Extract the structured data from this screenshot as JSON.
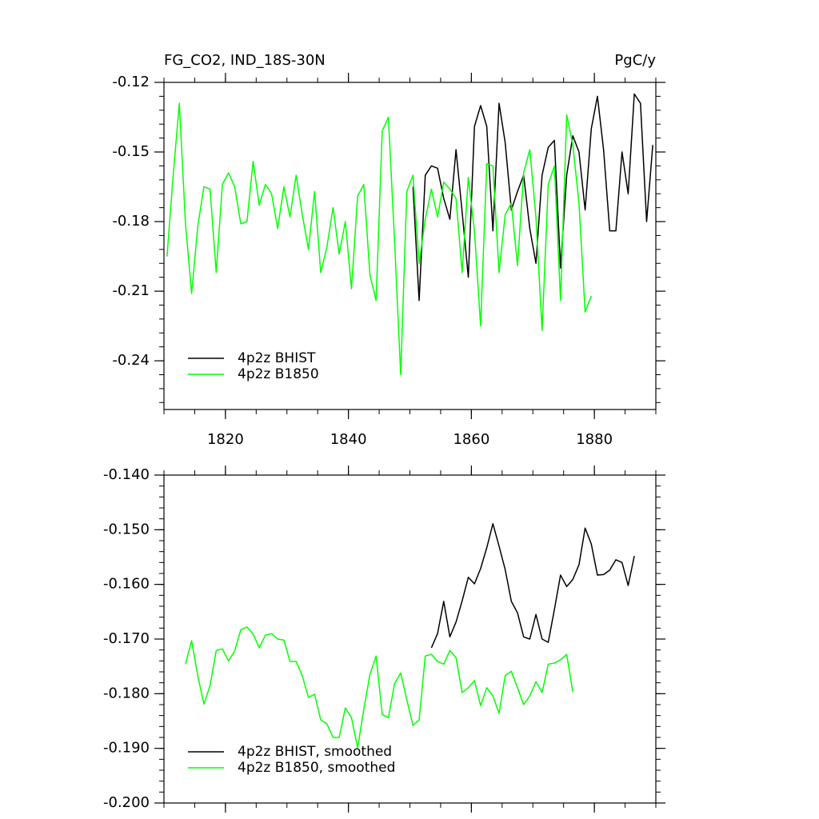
{
  "chart_data": [
    {
      "type": "line",
      "title": "FG_CO2, IND_18S-30N",
      "units": "PgC/y",
      "xlim": [
        1810,
        1890
      ],
      "xticks": [
        1820,
        1840,
        1860,
        1880
      ],
      "xtick_labels": true,
      "ylim": [
        -0.261,
        -0.12
      ],
      "yticks": [
        -0.12,
        -0.15,
        -0.18,
        -0.21,
        -0.24
      ],
      "legend": "lower left",
      "series": [
        {
          "name": "4p2z BHIST",
          "color": "#000000",
          "x": [
            1850.5,
            1851.5,
            1852.5,
            1853.5,
            1854.5,
            1855.5,
            1856.5,
            1857.5,
            1858.5,
            1859.5,
            1860.5,
            1861.5,
            1862.5,
            1863.5,
            1864.5,
            1865.5,
            1866.5,
            1867.5,
            1868.5,
            1869.5,
            1870.5,
            1871.5,
            1872.5,
            1873.5,
            1874.5,
            1875.5,
            1876.5,
            1877.5,
            1878.5,
            1879.5,
            1880.5,
            1881.5,
            1882.5,
            1883.5,
            1884.5,
            1885.5,
            1886.5,
            1887.5,
            1888.5,
            1889.5
          ],
          "values": [
            -0.165,
            -0.214,
            -0.16,
            -0.156,
            -0.157,
            -0.17,
            -0.179,
            -0.149,
            -0.176,
            -0.204,
            -0.139,
            -0.13,
            -0.139,
            -0.184,
            -0.129,
            -0.146,
            -0.175,
            -0.167,
            -0.16,
            -0.183,
            -0.198,
            -0.16,
            -0.148,
            -0.145,
            -0.2,
            -0.16,
            -0.143,
            -0.15,
            -0.175,
            -0.14,
            -0.126,
            -0.149,
            -0.184,
            -0.184,
            -0.15,
            -0.168,
            -0.125,
            -0.129,
            -0.18,
            -0.147
          ]
        },
        {
          "name": "4p2z B1850",
          "color": "#00ff00",
          "x": [
            1810.5,
            1811.5,
            1812.5,
            1813.5,
            1814.5,
            1815.5,
            1816.5,
            1817.5,
            1818.5,
            1819.5,
            1820.5,
            1821.5,
            1822.5,
            1823.5,
            1824.5,
            1825.5,
            1826.5,
            1827.5,
            1828.5,
            1829.5,
            1830.5,
            1831.5,
            1832.5,
            1833.5,
            1834.5,
            1835.5,
            1836.5,
            1837.5,
            1838.5,
            1839.5,
            1840.5,
            1841.5,
            1842.5,
            1843.5,
            1844.5,
            1845.5,
            1846.5,
            1847.5,
            1848.5,
            1849.5,
            1850.5,
            1851.5,
            1852.5,
            1853.5,
            1854.5,
            1855.5,
            1856.5,
            1857.5,
            1858.5,
            1859.5,
            1860.5,
            1861.5,
            1862.5,
            1863.5,
            1864.5,
            1865.5,
            1866.5,
            1867.5,
            1868.5,
            1869.5,
            1870.5,
            1871.5,
            1872.5,
            1873.5,
            1874.5,
            1875.5,
            1876.5,
            1877.5,
            1878.5,
            1879.5
          ],
          "values": [
            -0.195,
            -0.16,
            -0.129,
            -0.181,
            -0.211,
            -0.182,
            -0.165,
            -0.166,
            -0.202,
            -0.164,
            -0.159,
            -0.165,
            -0.181,
            -0.18,
            -0.154,
            -0.173,
            -0.164,
            -0.168,
            -0.183,
            -0.165,
            -0.178,
            -0.16,
            -0.177,
            -0.192,
            -0.167,
            -0.202,
            -0.191,
            -0.174,
            -0.194,
            -0.18,
            -0.209,
            -0.169,
            -0.164,
            -0.203,
            -0.214,
            -0.141,
            -0.135,
            -0.188,
            -0.246,
            -0.167,
            -0.16,
            -0.198,
            -0.179,
            -0.166,
            -0.178,
            -0.163,
            -0.166,
            -0.17,
            -0.202,
            -0.161,
            -0.184,
            -0.225,
            -0.155,
            -0.156,
            -0.202,
            -0.177,
            -0.172,
            -0.199,
            -0.159,
            -0.149,
            -0.178,
            -0.227,
            -0.164,
            -0.156,
            -0.214,
            -0.134,
            -0.147,
            -0.172,
            -0.219,
            -0.212
          ]
        }
      ]
    },
    {
      "type": "line",
      "xlim": [
        1810,
        1890
      ],
      "xticks": [
        1820,
        1840,
        1860,
        1880
      ],
      "xtick_labels": false,
      "ylim": [
        -0.2,
        -0.14
      ],
      "yticks": [
        {
          "value": -0.14,
          "label": "-0.140"
        },
        {
          "value": -0.15,
          "label": "-0.150"
        },
        {
          "value": -0.16,
          "label": "-0.160"
        },
        {
          "value": -0.17,
          "label": "-0.170"
        },
        {
          "value": -0.18,
          "label": "-0.180"
        },
        {
          "value": -0.19,
          "label": "-0.190"
        },
        {
          "value": -0.2,
          "label": "-0.200"
        }
      ],
      "legend": "lower left",
      "series": [
        {
          "name": "4p2z BHIST, smoothed",
          "color": "#000000",
          "x": [
            1853.5,
            1854.5,
            1855.5,
            1856.5,
            1857.5,
            1858.5,
            1859.5,
            1860.5,
            1861.5,
            1862.5,
            1863.5,
            1864.5,
            1865.5,
            1866.5,
            1867.5,
            1868.5,
            1869.5,
            1870.5,
            1871.5,
            1872.5,
            1873.5,
            1874.5,
            1875.5,
            1876.5,
            1877.5,
            1878.5,
            1879.5,
            1880.5,
            1881.5,
            1882.5,
            1883.5,
            1884.5,
            1885.5,
            1886.5
          ],
          "values": [
            -0.1716,
            -0.169,
            -0.1631,
            -0.1696,
            -0.1669,
            -0.163,
            -0.1587,
            -0.1599,
            -0.1571,
            -0.1533,
            -0.1489,
            -0.153,
            -0.1573,
            -0.1631,
            -0.1652,
            -0.1696,
            -0.17,
            -0.1655,
            -0.17,
            -0.1706,
            -0.1646,
            -0.1583,
            -0.1604,
            -0.1591,
            -0.1564,
            -0.1497,
            -0.1526,
            -0.1583,
            -0.1582,
            -0.1574,
            -0.1555,
            -0.156,
            -0.1602,
            -0.1548
          ]
        },
        {
          "name": "4p2z B1850, smoothed",
          "color": "#00ff00",
          "x": [
            1813.5,
            1814.5,
            1815.5,
            1816.5,
            1817.5,
            1818.5,
            1819.5,
            1820.5,
            1821.5,
            1822.5,
            1823.5,
            1824.5,
            1825.5,
            1826.5,
            1827.5,
            1828.5,
            1829.5,
            1830.5,
            1831.5,
            1832.5,
            1833.5,
            1834.5,
            1835.5,
            1836.5,
            1837.5,
            1838.5,
            1839.5,
            1840.5,
            1841.5,
            1842.5,
            1843.5,
            1844.5,
            1845.5,
            1846.5,
            1847.5,
            1848.5,
            1849.5,
            1850.5,
            1851.5,
            1852.5,
            1853.5,
            1854.5,
            1855.5,
            1856.5,
            1857.5,
            1858.5,
            1859.5,
            1860.5,
            1861.5,
            1862.5,
            1863.5,
            1864.5,
            1865.5,
            1866.5,
            1867.5,
            1868.5,
            1869.5,
            1870.5,
            1871.5,
            1872.5,
            1873.5,
            1874.5,
            1875.5,
            1876.5
          ],
          "values": [
            -0.1746,
            -0.1703,
            -0.1767,
            -0.1819,
            -0.1785,
            -0.1721,
            -0.1718,
            -0.174,
            -0.1722,
            -0.1683,
            -0.1678,
            -0.1691,
            -0.1716,
            -0.1693,
            -0.169,
            -0.17,
            -0.1702,
            -0.1741,
            -0.1741,
            -0.1767,
            -0.1807,
            -0.1801,
            -0.1848,
            -0.1855,
            -0.188,
            -0.188,
            -0.1826,
            -0.1844,
            -0.1899,
            -0.1829,
            -0.1765,
            -0.1731,
            -0.1838,
            -0.1844,
            -0.1782,
            -0.1762,
            -0.1811,
            -0.1858,
            -0.1848,
            -0.1731,
            -0.1728,
            -0.1741,
            -0.1746,
            -0.1721,
            -0.1734,
            -0.1798,
            -0.1789,
            -0.1776,
            -0.1822,
            -0.1789,
            -0.1804,
            -0.1836,
            -0.1767,
            -0.1759,
            -0.1789,
            -0.182,
            -0.1804,
            -0.1778,
            -0.1798,
            -0.1746,
            -0.1744,
            -0.1738,
            -0.1728,
            -0.1797
          ]
        }
      ]
    }
  ]
}
